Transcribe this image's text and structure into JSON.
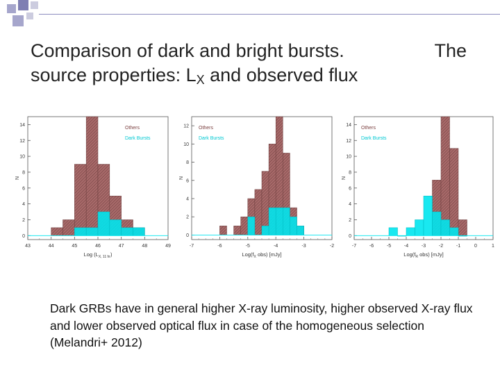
{
  "slide": {
    "title_line1": "Comparison of dark and bright bursts.",
    "title_line1b": "The",
    "title_line2_pre": "source properties: L",
    "title_line2_sub": "X",
    "title_line2_post": " and observed flux",
    "caption": "Dark GRBs have in general higher X-ray luminosity, higher observed X-ray flux and lower observed optical flux in case of the homogeneous selection (Melandri+ 2012)"
  },
  "colors": {
    "others": "#a86a6a",
    "dark_bursts": "#00e5ee",
    "accent": "#8c8cbf"
  },
  "chart_data": [
    {
      "type": "bar",
      "xlabel": "Log (L",
      "xlabel_sub": "X, 11 hr",
      "xlabel_end": ")",
      "ylabel": "N",
      "xlim": [
        43,
        49
      ],
      "ylim": [
        -0.5,
        15
      ],
      "xticks": [
        43,
        44,
        45,
        46,
        47,
        48,
        49
      ],
      "yticks": [
        0,
        2,
        4,
        6,
        8,
        10,
        12,
        14
      ],
      "bin_width": 0.5,
      "legend": [
        "Others",
        "Dark Bursts"
      ],
      "legend_position": "top-right",
      "series": [
        {
          "name": "Others",
          "x": [
            44.0,
            44.5,
            45.0,
            45.5,
            46.0,
            46.5,
            47.0,
            47.5
          ],
          "values": [
            1,
            2,
            9,
            15,
            9,
            5,
            2,
            1
          ]
        },
        {
          "name": "Dark Bursts",
          "x": [
            45.0,
            45.5,
            46.0,
            46.5,
            47.0,
            47.5
          ],
          "values": [
            1,
            1,
            3,
            2,
            1,
            1
          ]
        }
      ]
    },
    {
      "type": "bar",
      "xlabel": "Log(f",
      "xlabel_sub": "X",
      "xlabel_end": " obs) [mJy]",
      "ylabel": "N",
      "xlim": [
        -7,
        -2
      ],
      "ylim": [
        -0.5,
        13
      ],
      "xticks": [
        -7,
        -6,
        -5,
        -4,
        -3,
        -2
      ],
      "yticks": [
        0,
        2,
        4,
        6,
        8,
        10,
        12
      ],
      "bin_width": 0.25,
      "legend": [
        "Others",
        "Dark Bursts"
      ],
      "legend_position": "top-left",
      "series": [
        {
          "name": "Others",
          "x": [
            -6.0,
            -5.5,
            -5.25,
            -5.0,
            -4.75,
            -4.5,
            -4.25,
            -4.0,
            -3.75,
            -3.5,
            -3.25
          ],
          "values": [
            1,
            1,
            2,
            4,
            5,
            7,
            10,
            13,
            9,
            3,
            1
          ]
        },
        {
          "name": "Dark Bursts",
          "x": [
            -5.0,
            -4.5,
            -4.25,
            -4.0,
            -3.75,
            -3.5,
            -3.25
          ],
          "values": [
            2,
            1,
            3,
            3,
            3,
            2,
            1
          ]
        }
      ]
    },
    {
      "type": "bar",
      "xlabel": "Log(f",
      "xlabel_sub": "R",
      "xlabel_end": " obs) [mJy]",
      "ylabel": "N",
      "xlim": [
        -7,
        1
      ],
      "ylim": [
        -0.5,
        15
      ],
      "xticks": [
        -7,
        -6,
        -5,
        -4,
        -3,
        -2,
        -1,
        0,
        1
      ],
      "yticks": [
        0,
        2,
        4,
        6,
        8,
        10,
        12,
        14
      ],
      "bin_width": 0.5,
      "legend": [
        "Others",
        "Dark Bursts"
      ],
      "legend_position": "top-left",
      "series": [
        {
          "name": "Others",
          "x": [
            -2.5,
            -2.0,
            -1.5,
            -1.0
          ],
          "values": [
            7,
            15,
            11,
            2
          ]
        },
        {
          "name": "Dark Bursts",
          "x": [
            -5.0,
            -4.5,
            -4.0,
            -3.5,
            -3.0,
            -2.5,
            -2.0,
            -1.5,
            -1.0
          ],
          "values": [
            1,
            0,
            1,
            2,
            5,
            3,
            2,
            1,
            0
          ]
        }
      ]
    }
  ]
}
